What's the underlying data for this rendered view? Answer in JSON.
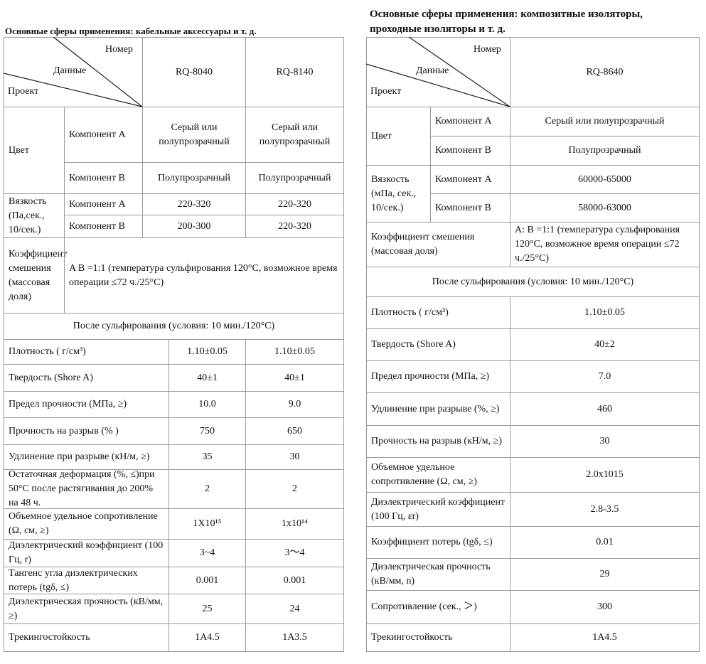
{
  "left": {
    "title": "Основные сферы применения: кабельные аксессуары и т. д.",
    "header": {
      "number": "Номер",
      "data": "Данные",
      "project": "Проект",
      "models": [
        "RQ-8040",
        "RQ-8140"
      ]
    },
    "groups": [
      {
        "label": "Цвет",
        "rows": [
          [
            "Компонент A",
            "Серый или полупрозрачный",
            "Серый или полупрозрачный"
          ],
          [
            "Компонент B",
            "Полупрозрачный",
            "Полупрозрачный"
          ]
        ]
      },
      {
        "label": "Вязкость (Па,сек., 10/сек.)",
        "rows": [
          [
            "Компонент A",
            "220-320",
            "220-320"
          ],
          [
            "Компонент B",
            "200-300",
            "220-320"
          ]
        ]
      }
    ],
    "mix": {
      "label": "Коэффициент смешения (массовая доля)",
      "value": "A B =1:1 (температура сульфирования 120°C, возможное время операции ≤72 ч./25°C)"
    },
    "after_title": "После сульфирования (условия: 10 мин./120°C)",
    "rows": [
      [
        "Плотность ( г/см³)",
        "1.10±0.05",
        "1.10±0.05"
      ],
      [
        "Твердость (Shore A)",
        "40±1",
        "40±1"
      ],
      [
        "Предел прочности (МПа, ≥)",
        "10.0",
        "9.0"
      ],
      [
        "Прочность на разрыв (% )",
        "750",
        "650"
      ],
      [
        "Удлинение при разрыве (кН/м, ≥)",
        "35",
        "30"
      ],
      [
        "Остаточная деформация (%, ≤)при 50°C после растягивания до 200% на 48 ч.",
        "2",
        "2"
      ],
      [
        "Объемное удельное сопротивление (Ω, см, ≥)",
        "1X10¹⁵",
        "1x10¹⁴"
      ],
      [
        "Диэлектрический коэффициент (100 Гц, r)",
        "3~4",
        "3〜4"
      ],
      [
        "Тангенс угла диэлектрических потерь (tgδ, ≤)",
        "0.001",
        "0.001"
      ],
      [
        "Диэлектрическая прочность (кВ/мм, ≥)",
        "25",
        "24"
      ],
      [
        "Трекингостойкость",
        "1A4.5",
        "1A3.5"
      ]
    ]
  },
  "right": {
    "title_lines": [
      "Основные сферы применения: композитные изоляторы,",
      "проходные изоляторы и т. д."
    ],
    "header": {
      "number": "Номер",
      "data": "Данные",
      "project": "Проект",
      "models": [
        "RQ-8640"
      ]
    },
    "groups": [
      {
        "label": "Цвет",
        "rows": [
          [
            "Компонент A",
            "Серый или полупрозрачный"
          ],
          [
            "Компонент B",
            "Полупрозрачный"
          ]
        ]
      },
      {
        "label": "Вязкость (мПа, сек., 10/сек.)",
        "rows": [
          [
            "Компонент A",
            "60000-65000"
          ],
          [
            "Компонент B",
            "58000-63000"
          ]
        ]
      }
    ],
    "mix": {
      "label": "Коэффициент смешения (массовая доля)",
      "value": "A: B =1:1 (температура сульфирования 120°C, возможное время операции ≤72 ч./25°C)"
    },
    "after_title": "После сульфирования (условия: 10 мин./120°C)",
    "rows": [
      [
        "Плотность ( г/см³)",
        "1.10±0.05"
      ],
      [
        "Твердость (Shore A)",
        "40±2"
      ],
      [
        "Предел прочности (МПа, ≥)",
        "7.0"
      ],
      [
        "Удлинение при разрыве (%, ≥)",
        "460"
      ],
      [
        "Прочность на разрыв (кН/м, ≥)",
        "30"
      ],
      [
        "Объемное удельное сопротивление (Ω, см, ≥)",
        "2.0x1015"
      ],
      [
        "Диэлектрический коэффициент (100 Гц, εr)",
        "2.8-3.5"
      ],
      [
        "Коэффициент потерь (tgδ, ≤)",
        "0.01"
      ],
      [
        "Диэлектрическая прочность (кВ/мм, n)",
        "29"
      ],
      [
        "Сопротивление (сек., ＞)",
        "300"
      ],
      [
        "Трекингостойкость",
        "1A4.5"
      ]
    ]
  }
}
